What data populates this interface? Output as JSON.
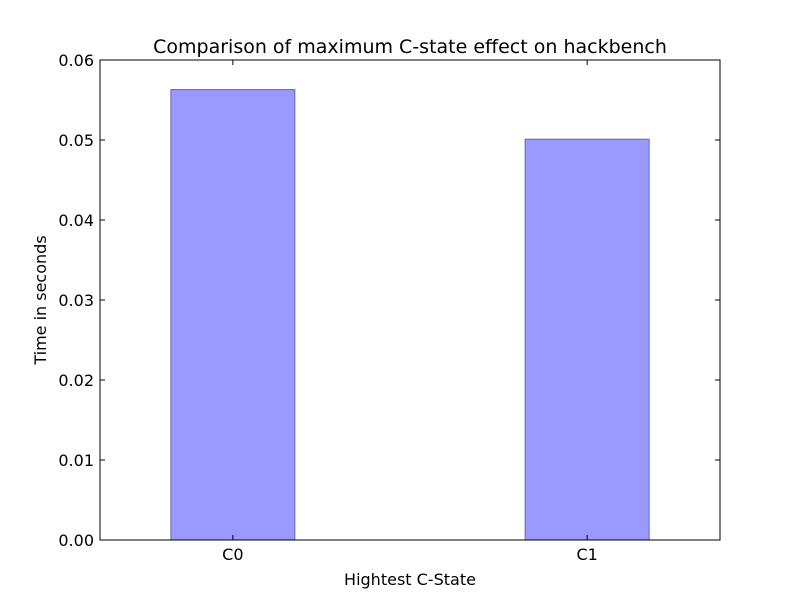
{
  "chart_data": {
    "type": "bar",
    "title": "Comparison of maximum C-state effect on hackbench",
    "xlabel": "Hightest C-State",
    "ylabel": "Time in seconds",
    "categories": [
      "C0",
      "C1"
    ],
    "values": [
      0.0563,
      0.0501
    ],
    "ylim": [
      0,
      0.06
    ],
    "yticks": [
      "0.00",
      "0.01",
      "0.02",
      "0.03",
      "0.04",
      "0.05",
      "0.06"
    ],
    "grid": false,
    "legend": "none",
    "bar_color": "#9999ff",
    "bar_edge_color": "#5f6aa8"
  }
}
